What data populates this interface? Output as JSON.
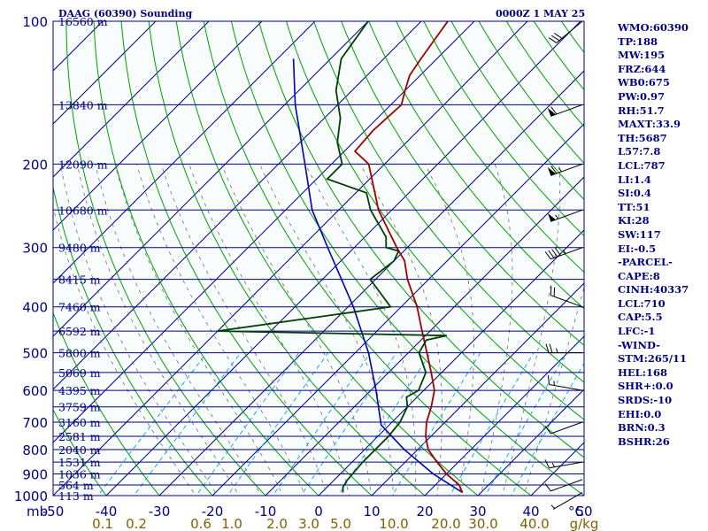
{
  "header": {
    "station_title": "DAAG (60390) Sounding",
    "time_title": "0000Z  1 MAY 25"
  },
  "side_panel": [
    "WMO:60390",
    "TP:188",
    "MW:195",
    "FRZ:644",
    "WB0:675",
    "PW:0.97",
    "RH:51.7",
    "MAXT:33.9",
    "TH:5687",
    "L57:7.8",
    "LCL:787",
    "LI:1.4",
    "SI:0.4",
    "TT:51",
    "KI:28",
    "SW:117",
    "EI:-0.5",
    "-PARCEL-",
    "CAPE:8",
    "CINH:40337",
    "LCL:710",
    "CAP:5.5",
    "LFC:-1",
    "-WIND-",
    "STM:265/11",
    "HEL:168",
    "SHR+:0.0",
    "SRDS:-10",
    "EHI:0.0",
    "BRN:0.3",
    "BSHR:26"
  ],
  "colors": {
    "background": "#f8fcfc",
    "isobar": "#000080",
    "isotherm": "#000080",
    "dry_adiabat": "#00a000",
    "moist_adiabat": "#707070",
    "mixing_ratio": "#00a0ff",
    "temperature": "#a00000",
    "dewpoint": "#004000",
    "parcel": "#0000b0",
    "axis_text": "#000080",
    "mixing_text": "#806000"
  },
  "chart_data": {
    "type": "skew-t",
    "xlabel": "°C",
    "x_unit_label": "mb",
    "pressure_levels": [
      1000,
      900,
      800,
      700,
      600,
      500,
      400,
      300,
      200,
      100
    ],
    "temperature_ticks": [
      -50,
      -40,
      -30,
      -20,
      -10,
      0,
      10,
      20,
      30,
      40,
      50
    ],
    "temperature_tick_labels": [
      "-50",
      "-40",
      "-30",
      "-20",
      "-10",
      "0",
      "10",
      "20",
      "30",
      "40",
      "50"
    ],
    "height_labels": [
      {
        "p": 100,
        "label": "16560 m"
      },
      {
        "p": 150,
        "label": "13840 m"
      },
      {
        "p": 200,
        "label": "12090 m"
      },
      {
        "p": 250,
        "label": "10680 m"
      },
      {
        "p": 300,
        "label": "9480 m"
      },
      {
        "p": 350,
        "label": "8415 m"
      },
      {
        "p": 400,
        "label": "7460 m"
      },
      {
        "p": 450,
        "label": "6592 m"
      },
      {
        "p": 500,
        "label": "5800 m"
      },
      {
        "p": 550,
        "label": "5069 m"
      },
      {
        "p": 600,
        "label": "4395 m"
      },
      {
        "p": 650,
        "label": "3759 m"
      },
      {
        "p": 700,
        "label": "3160 m"
      },
      {
        "p": 750,
        "label": "2581 m"
      },
      {
        "p": 800,
        "label": "2040 m"
      },
      {
        "p": 850,
        "label": "1531 m"
      },
      {
        "p": 900,
        "label": "1036 m"
      },
      {
        "p": 950,
        "label": "564 m"
      },
      {
        "p": 1000,
        "label": "113 m"
      }
    ],
    "mixing_ratio_labels": [
      "0.1",
      "0.2",
      "0.6",
      "1.0",
      "2.0",
      "3.0",
      "5.0",
      "10.0",
      "20.0",
      "30.0",
      "40.0"
    ],
    "mixing_ratio_values": [
      0.1,
      0.2,
      0.6,
      1.0,
      2.0,
      3.0,
      5.0,
      10.0,
      20.0,
      30.0,
      40.0
    ],
    "mixing_unit": "g/kg",
    "temperature_profile": [
      {
        "p": 985,
        "t": 26.5
      },
      {
        "p": 950,
        "t": 24.5
      },
      {
        "p": 900,
        "t": 20.0
      },
      {
        "p": 850,
        "t": 16.0
      },
      {
        "p": 800,
        "t": 12.0
      },
      {
        "p": 750,
        "t": 9.0
      },
      {
        "p": 700,
        "t": 6.5
      },
      {
        "p": 650,
        "t": 4.5
      },
      {
        "p": 600,
        "t": 2.0
      },
      {
        "p": 550,
        "t": -2.0
      },
      {
        "p": 500,
        "t": -6.5
      },
      {
        "p": 450,
        "t": -11.5
      },
      {
        "p": 400,
        "t": -17.0
      },
      {
        "p": 350,
        "t": -24.0
      },
      {
        "p": 320,
        "t": -28.0
      },
      {
        "p": 300,
        "t": -32.0
      },
      {
        "p": 250,
        "t": -42.5
      },
      {
        "p": 200,
        "t": -53.0
      },
      {
        "p": 188,
        "t": -58.0
      },
      {
        "p": 170,
        "t": -58.5
      },
      {
        "p": 150,
        "t": -58.0
      },
      {
        "p": 140,
        "t": -60.0
      },
      {
        "p": 130,
        "t": -62.0
      },
      {
        "p": 120,
        "t": -63.0
      },
      {
        "p": 100,
        "t": -65.0
      }
    ],
    "dewpoint_profile": [
      {
        "p": 985,
        "t": 4.0
      },
      {
        "p": 960,
        "t": 3.0
      },
      {
        "p": 930,
        "t": 2.5
      },
      {
        "p": 850,
        "t": 2.0
      },
      {
        "p": 800,
        "t": 2.0
      },
      {
        "p": 750,
        "t": 2.0
      },
      {
        "p": 700,
        "t": 1.5
      },
      {
        "p": 650,
        "t": 0.0
      },
      {
        "p": 620,
        "t": -2.0
      },
      {
        "p": 600,
        "t": -1.0
      },
      {
        "p": 550,
        "t": -3.0
      },
      {
        "p": 500,
        "t": -8.0
      },
      {
        "p": 470,
        "t": -9.0
      },
      {
        "p": 460,
        "t": -6.0
      },
      {
        "p": 450,
        "t": -50.0
      },
      {
        "p": 400,
        "t": -22.0
      },
      {
        "p": 350,
        "t": -31.0
      },
      {
        "p": 320,
        "t": -30.0
      },
      {
        "p": 305,
        "t": -31.0
      },
      {
        "p": 300,
        "t": -34.0
      },
      {
        "p": 285,
        "t": -36.0
      },
      {
        "p": 250,
        "t": -44.0
      },
      {
        "p": 230,
        "t": -48.0
      },
      {
        "p": 215,
        "t": -58.0
      },
      {
        "p": 200,
        "t": -58.0
      },
      {
        "p": 180,
        "t": -63.0
      },
      {
        "p": 160,
        "t": -67.0
      },
      {
        "p": 140,
        "t": -73.0
      },
      {
        "p": 120,
        "t": -78.0
      },
      {
        "p": 100,
        "t": -80.0
      }
    ],
    "parcel_profile": [
      {
        "p": 985,
        "t": 26.5
      },
      {
        "p": 900,
        "t": 17.5
      },
      {
        "p": 800,
        "t": 7.5
      },
      {
        "p": 710,
        "t": -1.5
      },
      {
        "p": 600,
        "t": -9.0
      },
      {
        "p": 500,
        "t": -17.5
      },
      {
        "p": 400,
        "t": -29.0
      },
      {
        "p": 300,
        "t": -45.0
      },
      {
        "p": 250,
        "t": -55.0
      },
      {
        "p": 200,
        "t": -65.0
      },
      {
        "p": 150,
        "t": -78.0
      },
      {
        "p": 120,
        "t": -87.0
      }
    ],
    "wind_barbs": [
      {
        "p": 985,
        "dir": 240,
        "spd": 5
      },
      {
        "p": 925,
        "dir": 250,
        "spd": 10
      },
      {
        "p": 850,
        "dir": 260,
        "spd": 15
      },
      {
        "p": 700,
        "dir": 250,
        "spd": 10
      },
      {
        "p": 600,
        "dir": 280,
        "spd": 15
      },
      {
        "p": 500,
        "dir": 270,
        "spd": 25
      },
      {
        "p": 400,
        "dir": 290,
        "spd": 20
      },
      {
        "p": 300,
        "dir": 250,
        "spd": 45
      },
      {
        "p": 250,
        "dir": 250,
        "spd": 55
      },
      {
        "p": 200,
        "dir": 250,
        "spd": 65
      },
      {
        "p": 150,
        "dir": 250,
        "spd": 60
      },
      {
        "p": 100,
        "dir": 230,
        "spd": 30
      }
    ]
  }
}
